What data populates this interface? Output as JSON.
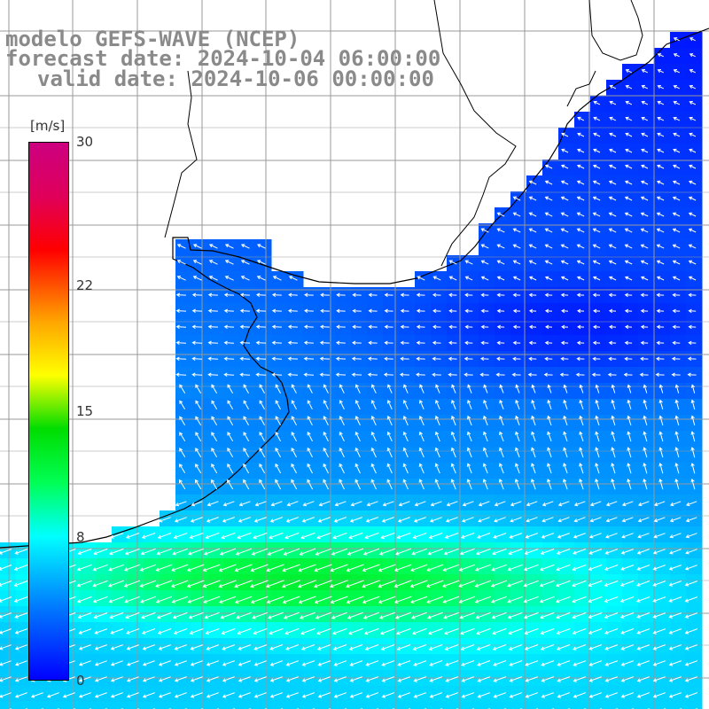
{
  "title": {
    "line1": "modelo GEFS-WAVE (NCEP)",
    "line2": "forecast date: 2024-10-04 06:00:00",
    "line3": "valid date: 2024-10-06 00:00:00"
  },
  "colorbar": {
    "unit": "[m/s]",
    "ticks": [
      {
        "label": "30",
        "value": 30
      },
      {
        "label": "22",
        "value": 22
      },
      {
        "label": "15",
        "value": 15
      },
      {
        "label": "8",
        "value": 8
      },
      {
        "label": "0",
        "value": 0
      }
    ],
    "stops": [
      {
        "value": 0,
        "color": "#0000ff"
      },
      {
        "value": 4,
        "color": "#0078ff"
      },
      {
        "value": 8,
        "color": "#00ffff"
      },
      {
        "value": 11,
        "color": "#00ff55"
      },
      {
        "value": 14,
        "color": "#00dd00"
      },
      {
        "value": 17,
        "color": "#ffff00"
      },
      {
        "value": 20,
        "color": "#ffa500"
      },
      {
        "value": 24,
        "color": "#ff0000"
      },
      {
        "value": 27,
        "color": "#e0005a"
      },
      {
        "value": 30,
        "color": "#cc0080"
      }
    ]
  },
  "colors": {
    "land": "#ffffff",
    "coast": "#000000",
    "grid": "#999999",
    "vector": "#ffffff"
  }
}
